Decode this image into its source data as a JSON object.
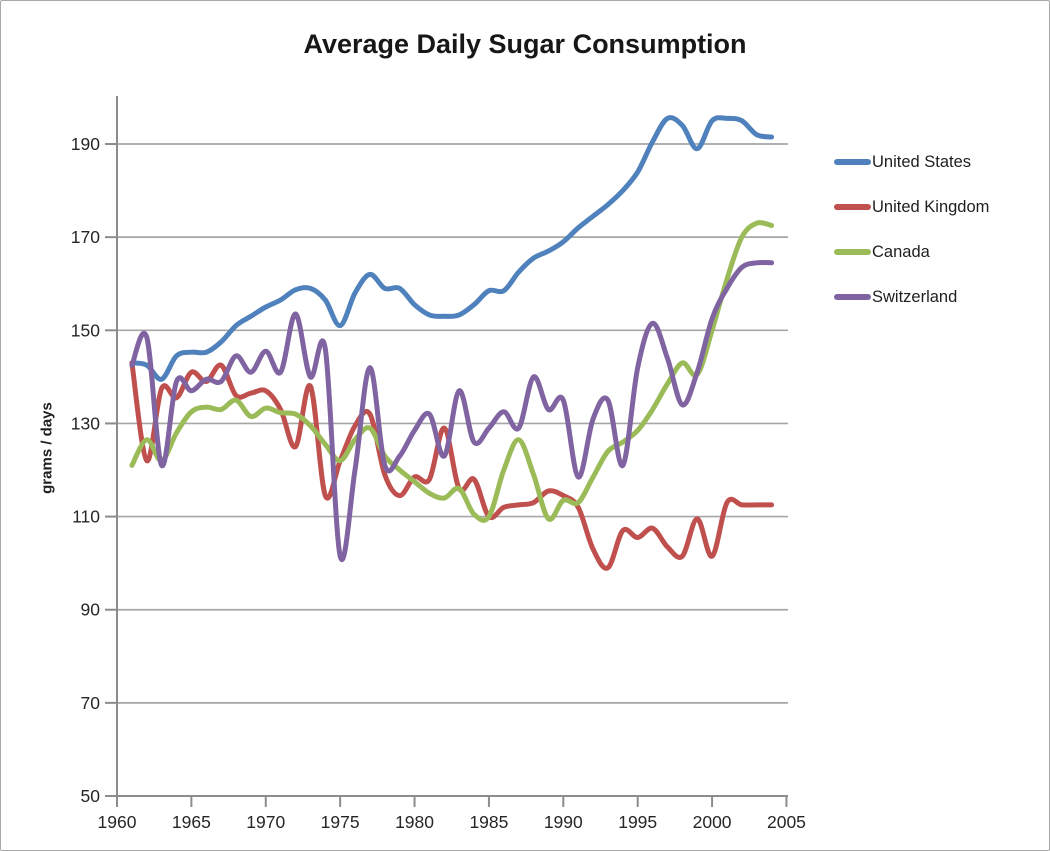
{
  "chart_data": {
    "type": "line",
    "title": "Average Daily Sugar Consumption",
    "xlabel": "",
    "ylabel": "grams / days",
    "xlim": [
      1960,
      2005
    ],
    "ylim": [
      50,
      200
    ],
    "grid": "horizontal",
    "legend_position": "right",
    "x_ticks": [
      1960,
      1965,
      1970,
      1975,
      1980,
      1985,
      1990,
      1995,
      2000,
      2005
    ],
    "y_ticks": [
      50,
      70,
      90,
      110,
      130,
      150,
      170,
      190
    ],
    "x": [
      1961,
      1962,
      1963,
      1964,
      1965,
      1966,
      1967,
      1968,
      1969,
      1970,
      1971,
      1972,
      1973,
      1974,
      1975,
      1976,
      1977,
      1978,
      1979,
      1980,
      1981,
      1982,
      1983,
      1984,
      1985,
      1986,
      1987,
      1988,
      1989,
      1990,
      1991,
      1992,
      1993,
      1994,
      1995,
      1996,
      1997,
      1998,
      1999,
      2000,
      2001,
      2002,
      2003,
      2004
    ],
    "series": [
      {
        "name": "United States",
        "color": "#4F81BD",
        "values": [
          143,
          142.5,
          139.5,
          144.5,
          145.3,
          145.3,
          147.5,
          151,
          153,
          155,
          156.5,
          158.7,
          159,
          156.5,
          151,
          158,
          162,
          159,
          159,
          155.5,
          153.3,
          153,
          153.3,
          155.5,
          158.5,
          158.5,
          162.5,
          165.5,
          167,
          169,
          172,
          174.5,
          177,
          180,
          184,
          190.5,
          195.5,
          194,
          189,
          195,
          195.5,
          195,
          192,
          191.5
        ]
      },
      {
        "name": "United Kingdom",
        "color": "#C0504D",
        "values": [
          143,
          122,
          137.5,
          135.5,
          141,
          139,
          142.5,
          136,
          136.5,
          137,
          133,
          125,
          138,
          114.5,
          122,
          129.5,
          132,
          119,
          114.5,
          118.5,
          118,
          129,
          116,
          118,
          110,
          112,
          112.5,
          113,
          115.5,
          114.5,
          112,
          103,
          99,
          107,
          105.5,
          107.5,
          103.5,
          101.5,
          109.5,
          101.5,
          113,
          112.5,
          112.5,
          112.5
        ]
      },
      {
        "name": "Canada",
        "color": "#9BBB59",
        "values": [
          121,
          126.5,
          122,
          128,
          132.5,
          133.5,
          133,
          135,
          131.5,
          133.3,
          132.3,
          132,
          129.5,
          125.5,
          122,
          126.5,
          129,
          123,
          120,
          117.5,
          115,
          114,
          116,
          110.5,
          110,
          120,
          126.5,
          119,
          109.5,
          113.5,
          113,
          118.5,
          124,
          126,
          128.5,
          133,
          138.5,
          143,
          140.5,
          150,
          161,
          170,
          173,
          172.5
        ]
      },
      {
        "name": "Switzerland",
        "color": "#8064A2",
        "values": [
          142.5,
          148.5,
          121,
          139,
          137,
          139.5,
          139,
          144.5,
          141,
          145.5,
          141,
          153.5,
          140,
          146,
          101.5,
          120,
          142,
          121,
          123,
          128.5,
          132,
          123,
          137,
          126,
          129,
          132.5,
          129,
          140,
          133,
          135,
          118.5,
          131,
          135,
          121,
          142,
          151.5,
          144,
          134,
          141,
          152.5,
          159,
          163.5,
          164.5,
          164.5
        ]
      }
    ]
  }
}
